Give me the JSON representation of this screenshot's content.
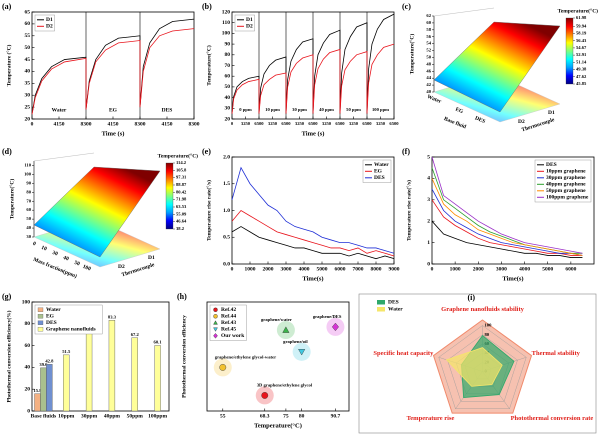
{
  "chart_data": [
    {
      "type": "line",
      "panel_label": "(a)",
      "xlabel": "Time (s)",
      "ylabel": "Temperature (°C)",
      "x": [
        0,
        500,
        1500,
        3000,
        5000,
        8300,
        8300,
        8800,
        9800,
        11300,
        13300,
        16600,
        16600,
        17100,
        18100,
        19600,
        21600,
        24900
      ],
      "xlim": [
        0,
        24900
      ],
      "xticks": [
        0,
        4150,
        8300,
        {
          "value": 12450,
          "label": "4150"
        },
        {
          "value": 16600,
          "label": "8300"
        },
        {
          "value": 20750,
          "label": "4150"
        },
        {
          "value": 24900,
          "label": "8300"
        }
      ],
      "ylim": [
        20,
        65
      ],
      "yticks": [
        20,
        25,
        30,
        35,
        40,
        45,
        50,
        55,
        60,
        65
      ],
      "segment_labels": [
        "Water",
        "EG",
        "DES"
      ],
      "legend": "upper left",
      "series": [
        {
          "name": "D1",
          "color": "#000000",
          "values": [
            22,
            30,
            37,
            42,
            45,
            46,
            24,
            36,
            45,
            51,
            54,
            55,
            25,
            42,
            52,
            58,
            61,
            62
          ]
        },
        {
          "name": "D2",
          "color": "#e8141c",
          "values": [
            22,
            29,
            36,
            41,
            44,
            45.5,
            24,
            35,
            44,
            49,
            52,
            53,
            25,
            40,
            50,
            55,
            57,
            58
          ]
        }
      ]
    },
    {
      "type": "line",
      "panel_label": "(b)",
      "xlabel": "Time (s)",
      "ylabel": "Temperature(°C)",
      "x": [
        0,
        400,
        1200,
        2500,
        4000,
        6500,
        6500,
        6900,
        7700,
        9000,
        10500,
        13000,
        13000,
        13400,
        14200,
        15500,
        17000,
        19500,
        19500,
        19900,
        20700,
        22000,
        23500,
        26000,
        26000,
        26400,
        27200,
        28500,
        30000,
        32500,
        32500,
        32900,
        33700,
        35000,
        36500,
        39000
      ],
      "xlim": [
        0,
        39000
      ],
      "xticks": [
        0,
        3250,
        6500,
        {
          "value": 9750,
          "label": "3250"
        },
        {
          "value": 13000,
          "label": "6500"
        },
        {
          "value": 16250,
          "label": "3250"
        },
        {
          "value": 19500,
          "label": "6500"
        },
        {
          "value": 22750,
          "label": "3250"
        },
        {
          "value": 26000,
          "label": "6500"
        },
        {
          "value": 29250,
          "label": "3250"
        },
        {
          "value": 32500,
          "label": "6500"
        },
        {
          "value": 35750,
          "label": "3250"
        },
        {
          "value": 39000,
          "label": "6500"
        }
      ],
      "ylim": [
        20,
        120
      ],
      "yticks": [
        20,
        30,
        40,
        50,
        60,
        70,
        80,
        90,
        100,
        110,
        120
      ],
      "segment_labels": [
        "0 ppm",
        "10 ppm",
        "30 ppm",
        "40 ppm",
        "50 ppm",
        "100 ppm"
      ],
      "legend": "upper left",
      "series": [
        {
          "name": "D1",
          "color": "#000000",
          "values": [
            25,
            41,
            50,
            55,
            58,
            60,
            25,
            49,
            62,
            70,
            75,
            78,
            25,
            57,
            74,
            85,
            92,
            95,
            25,
            60,
            80,
            91,
            99,
            103,
            25,
            63,
            85,
            97,
            106,
            110,
            25,
            67,
            90,
            104,
            113,
            118
          ]
        },
        {
          "name": "D2",
          "color": "#e8141c",
          "values": [
            25,
            39,
            47,
            52,
            55,
            57,
            25,
            42,
            52,
            57,
            61,
            63,
            25,
            50,
            64,
            72,
            77,
            80,
            25,
            52,
            67,
            76,
            82,
            85,
            25,
            51,
            66,
            74,
            80,
            83,
            25,
            54,
            71,
            80,
            87,
            90
          ]
        }
      ]
    },
    {
      "type": "surface3d",
      "panel_label": "(c)",
      "zlabel": "Temperature(°C)",
      "xlabel": "Base fluid",
      "ylabel": "Thermocouple",
      "categories": [
        "Water",
        "EG",
        "DES"
      ],
      "categories2": [
        "D2",
        "D1"
      ],
      "zlim": [
        40,
        62
      ],
      "zticks": [
        40,
        42,
        44,
        46,
        48,
        50,
        52,
        54,
        56,
        58,
        60,
        62
      ],
      "colorbar_title": "Temperature(°C)",
      "clim": [
        45.85,
        61.98
      ],
      "colorbar_ticks": [
        45.85,
        47.62,
        49.38,
        51.14,
        52.91,
        54.67,
        56.43,
        58.19,
        59.94,
        61.98
      ],
      "colormap": [
        "#00007f",
        "#0000ff",
        "#00a0ff",
        "#00ffff",
        "#7fff7f",
        "#ffff00",
        "#ff8000",
        "#ff0000",
        "#7f0000"
      ]
    },
    {
      "type": "surface3d",
      "panel_label": "(d)",
      "zlabel": "Temperature(°C)",
      "xlabel": "Mass fraction(ppm)",
      "ylabel": "Thermocouple",
      "categories": [
        "0",
        "10",
        "30",
        "40",
        "50",
        "100"
      ],
      "categories2": [
        "D2",
        "D1"
      ],
      "zlim": [
        30,
        115
      ],
      "zticks": [
        30,
        40,
        50,
        60,
        70,
        80,
        90,
        100,
        110
      ],
      "colorbar_title": "Temperature(°C)",
      "clim": [
        38.2,
        114.2
      ],
      "colorbar_ticks": [
        38.2,
        46.64,
        55.09,
        63.53,
        71.98,
        80.42,
        88.87,
        97.31,
        105.8,
        114.2
      ],
      "colormap": [
        "#00007f",
        "#0000ff",
        "#00a0ff",
        "#00ffff",
        "#7fff7f",
        "#ffff00",
        "#ff8000",
        "#ff0000",
        "#7f0000"
      ]
    },
    {
      "type": "line",
      "panel_label": "(e)",
      "xlabel": "Time(s)",
      "ylabel": "Temperature rise rate(°/s)",
      "x": [
        0,
        500,
        1000,
        1500,
        2000,
        2500,
        3000,
        3500,
        4000,
        4500,
        5000,
        5500,
        6000,
        6500,
        7000,
        7500,
        8000,
        8500,
        9000
      ],
      "xlim": [
        0,
        9000
      ],
      "xticks": [
        0,
        1000,
        2000,
        3000,
        4000,
        5000,
        6000,
        7000,
        8000,
        9000
      ],
      "ylim": [
        0,
        2
      ],
      "yticks": [
        {
          "value": 0,
          "label": "0.0"
        },
        0.5,
        {
          "value": 1,
          "label": "1.0"
        },
        1.5,
        {
          "value": 2,
          "label": "2.0"
        }
      ],
      "legend": "upper right",
      "series": [
        {
          "name": "Water",
          "color": "#000000",
          "values": [
            0.6,
            0.7,
            0.6,
            0.5,
            0.45,
            0.4,
            0.35,
            0.3,
            0.3,
            0.25,
            0.2,
            0.2,
            0.2,
            0.15,
            0.2,
            0.15,
            0.1,
            0.15,
            0.1
          ]
        },
        {
          "name": "EG",
          "color": "#e8141c",
          "values": [
            0.8,
            1.0,
            0.9,
            0.8,
            0.7,
            0.6,
            0.55,
            0.5,
            0.45,
            0.4,
            0.35,
            0.3,
            0.3,
            0.25,
            0.3,
            0.2,
            0.25,
            0.2,
            0.15
          ]
        },
        {
          "name": "DES",
          "color": "#1f2fd6",
          "values": [
            1.2,
            1.8,
            1.5,
            1.3,
            1.1,
            1.0,
            0.8,
            0.7,
            0.65,
            0.6,
            0.5,
            0.45,
            0.4,
            0.4,
            0.35,
            0.3,
            0.3,
            0.25,
            0.2
          ]
        }
      ]
    },
    {
      "type": "line",
      "panel_label": "(f)",
      "xlabel": "Time(s)",
      "ylabel": "Temperature rise rate(°/s)",
      "x": [
        0,
        500,
        1000,
        1500,
        2000,
        2500,
        3000,
        3500,
        4000,
        4500,
        5000,
        5500,
        6000,
        6500
      ],
      "xlim": [
        0,
        7000
      ],
      "xticks": [
        0,
        1000,
        2000,
        3000,
        4000,
        5000,
        6000
      ],
      "ylim": [
        0,
        5
      ],
      "yticks": [
        0,
        1,
        2,
        3,
        4,
        5
      ],
      "legend": "upper right",
      "series": [
        {
          "name": "DES",
          "color": "#000000",
          "values": [
            2.0,
            1.4,
            1.2,
            1.0,
            0.9,
            0.8,
            0.7,
            0.6,
            0.5,
            0.5,
            0.4,
            0.4,
            0.3,
            0.3
          ]
        },
        {
          "name": "10ppm graphene",
          "color": "#e8141c",
          "values": [
            3.0,
            2.2,
            1.8,
            1.5,
            1.2,
            1.0,
            0.9,
            0.8,
            0.7,
            0.6,
            0.5,
            0.5,
            0.4,
            0.4
          ]
        },
        {
          "name": "30ppm graphene",
          "color": "#1f2fd6",
          "values": [
            3.5,
            2.5,
            2.0,
            1.7,
            1.4,
            1.2,
            1.0,
            0.9,
            0.8,
            0.7,
            0.6,
            0.5,
            0.5,
            0.4
          ]
        },
        {
          "name": "40ppm graphene",
          "color": "#2ca02c",
          "values": [
            4.5,
            3.0,
            2.6,
            2.2,
            1.8,
            1.5,
            1.3,
            1.1,
            0.9,
            0.8,
            0.7,
            0.6,
            0.5,
            0.5
          ]
        },
        {
          "name": "50ppm graphene",
          "color": "#ff8c00",
          "values": [
            4.0,
            2.8,
            2.3,
            2.0,
            1.6,
            1.4,
            1.2,
            1.0,
            0.9,
            0.8,
            0.7,
            0.6,
            0.5,
            0.4
          ]
        },
        {
          "name": "100ppm graphene",
          "color": "#9b30c8",
          "values": [
            5.0,
            3.2,
            2.8,
            2.4,
            2.0,
            1.7,
            1.4,
            1.2,
            1.0,
            0.9,
            0.8,
            0.7,
            0.6,
            0.5
          ]
        }
      ]
    },
    {
      "type": "bar",
      "panel_label": "(g)",
      "ylabel": "Photothermal conversion efficiency(%)",
      "categories": [
        "Base fluids",
        "10ppm",
        "30ppm",
        "40ppm",
        "50ppm",
        "100ppm"
      ],
      "ylim": [
        0,
        100
      ],
      "yticks": [
        0,
        20,
        40,
        60,
        80,
        100
      ],
      "legend": "upper left",
      "series": [
        {
          "name": "Water",
          "color": "#f4b183",
          "values": [
            15.8,
            null,
            null,
            null,
            null,
            null
          ]
        },
        {
          "name": "EG",
          "color": "#a9c08e",
          "values": [
            39.6,
            null,
            null,
            null,
            null,
            null
          ]
        },
        {
          "name": "DES",
          "color": "#6f8fd0",
          "values": [
            42.8,
            null,
            null,
            null,
            null,
            null
          ]
        },
        {
          "name": "Graphene nanofluids",
          "color": "#ffff99",
          "values": [
            null,
            51.5,
            75.7,
            83.3,
            67.2,
            60.1
          ]
        }
      ]
    },
    {
      "type": "scatter",
      "panel_label": "(h)",
      "xlabel": "Temperature(°C)",
      "ylabel": "Photothermal conversion efficiency",
      "xlim": [
        50,
        95
      ],
      "xticks": [
        55,
        68.3,
        75,
        80,
        90.7
      ],
      "ylim": [
        20,
        90
      ],
      "legend": "upper left",
      "series": [
        {
          "name": "Ref.42",
          "color": "#e8141c",
          "marker": "circle",
          "x": [
            68.3
          ],
          "values": [
            30
          ],
          "point_labels": [
            "3D graphene/ethylene glycol"
          ]
        },
        {
          "name": "Ref.44",
          "color": "#f2c12e",
          "marker": "circle",
          "x": [
            55
          ],
          "values": [
            48
          ],
          "point_labels": [
            "graphene/ethylene glycol-water"
          ]
        },
        {
          "name": "Ref.43",
          "color": "#3cb44b",
          "marker": "triangle",
          "x": [
            75
          ],
          "values": [
            72
          ],
          "point_labels": [
            "graphene/water"
          ]
        },
        {
          "name": "Ref.45",
          "color": "#40c8e0",
          "marker": "triangle-down",
          "x": [
            80
          ],
          "values": [
            58
          ],
          "point_labels": [
            "graphene/oil"
          ]
        },
        {
          "name": "Our work",
          "color": "#d633d6",
          "marker": "diamond",
          "x": [
            90.7
          ],
          "values": [
            74
          ],
          "point_labels": [
            "graphene/DES"
          ]
        }
      ]
    },
    {
      "type": "radar",
      "panel_label": "(i)",
      "axes": [
        "Graphene nanofluids stability",
        "Thermal stability",
        "Photothermal conversion rate",
        "Temperature rise",
        "Specific heat capacity"
      ],
      "rlim": [
        0,
        100
      ],
      "rticks": [
        0,
        20,
        40,
        60,
        80,
        100
      ],
      "legend": "upper left",
      "series": [
        {
          "name": "DES",
          "color": "#2fa86a",
          "values": [
            78,
            72,
            62,
            70,
            48
          ]
        },
        {
          "name": "Water",
          "color": "#f5e66a",
          "values": [
            52,
            45,
            35,
            40,
            82
          ]
        }
      ]
    }
  ]
}
